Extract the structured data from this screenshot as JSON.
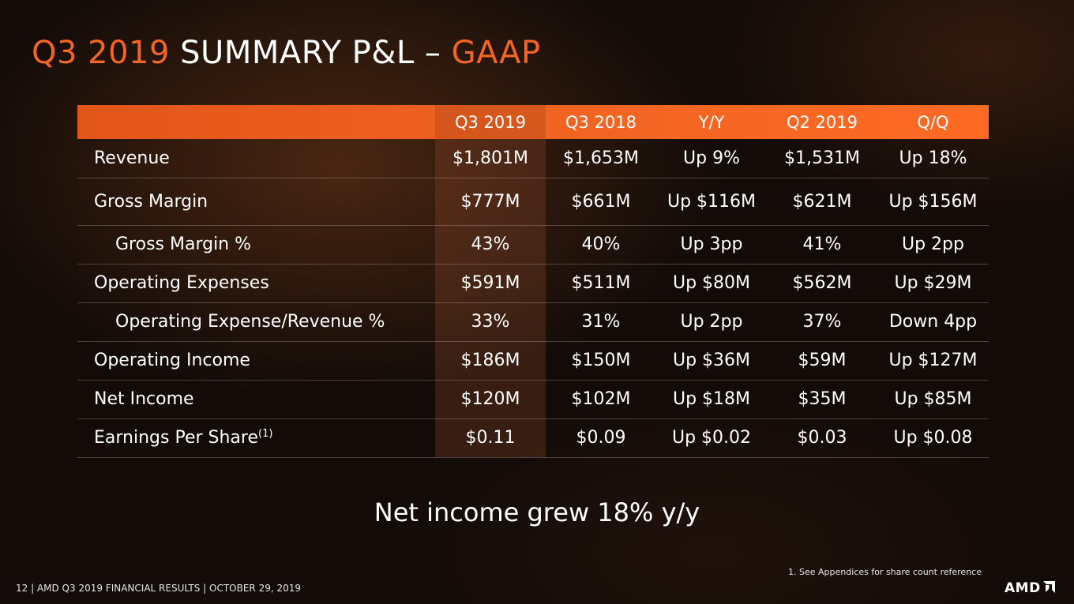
{
  "slide": {
    "title_accent1": "Q3 2019",
    "title_main": " SUMMARY P&L – ",
    "title_accent2": "GAAP",
    "columns": [
      "Q3 2019",
      "Q3 2018",
      "Y/Y",
      "Q2 2019",
      "Q/Q"
    ],
    "rows": [
      {
        "label": "Revenue",
        "values": [
          "$1,801M",
          "$1,653M",
          "Up 9%",
          "$1,531M",
          "Up 18%"
        ]
      },
      {
        "label": "Gross Margin",
        "values": [
          "$777M",
          "$661M",
          "Up $116M",
          "$621M",
          "Up $156M"
        ]
      },
      {
        "label": "Gross Margin %",
        "values": [
          "43%",
          "40%",
          "Up 3pp",
          "41%",
          "Up 2pp"
        ]
      },
      {
        "label": "Operating Expenses",
        "values": [
          "$591M",
          "$511M",
          "Up $80M",
          "$562M",
          "Up $29M"
        ]
      },
      {
        "label": "Operating Expense/Revenue %",
        "values": [
          "33%",
          "31%",
          "Up 2pp",
          "37%",
          "Down 4pp"
        ]
      },
      {
        "label": "Operating Income",
        "values": [
          "$186M",
          "$150M",
          "Up $36M",
          "$59M",
          "Up $127M"
        ]
      },
      {
        "label": "Net Income",
        "values": [
          "$120M",
          "$102M",
          "Up $18M",
          "$35M",
          "Up $85M"
        ]
      },
      {
        "label": "Earnings Per Share",
        "label_sup": "(1)",
        "values": [
          "$0.11",
          "$0.09",
          "Up $0.02",
          "$0.03",
          "Up $0.08"
        ]
      }
    ],
    "callout": "Net income grew 18% y/y",
    "footnote": "1.    See Appendices for share count reference",
    "footer": "12  |  AMD Q3 2019 FINANCIAL RESULTS  |  OCTOBER 29, 2019",
    "logo_text": "AMD",
    "logo_icon": "amd-arrow-icon",
    "colors": {
      "accent": "#f26522",
      "background": "#120b08"
    }
  }
}
